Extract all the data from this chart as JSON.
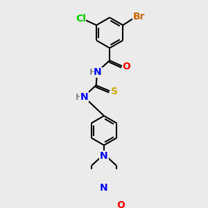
{
  "bg_color": "#ebebeb",
  "bond_color": "#000000",
  "bond_width": 1.5,
  "atom_colors": {
    "Br": "#cc6600",
    "Cl": "#00cc00",
    "O": "#ff0000",
    "N": "#0000ff",
    "S": "#ccaa00",
    "H": "#888888",
    "C": "#000000"
  },
  "font_size": 9,
  "fig_size": [
    3.0,
    3.0
  ],
  "dpi": 100
}
